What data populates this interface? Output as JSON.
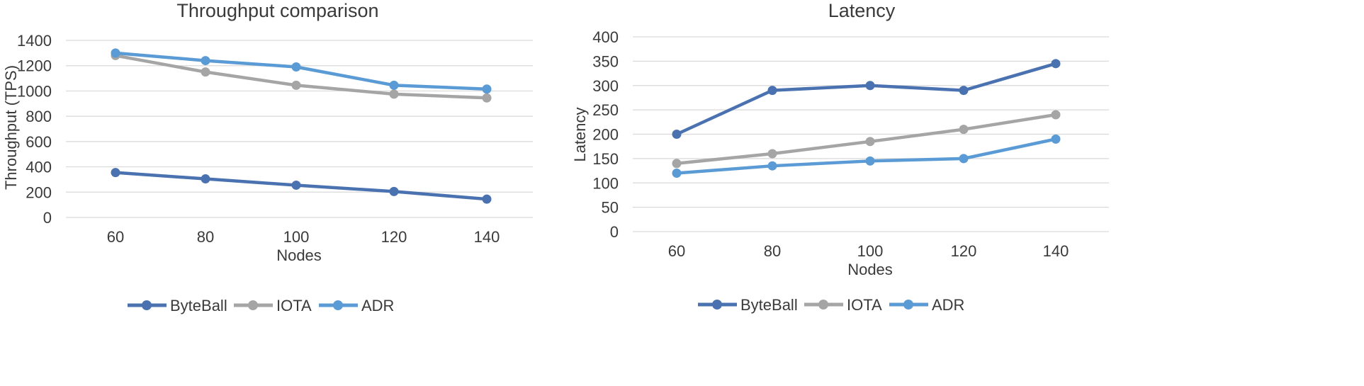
{
  "colors": {
    "ByteBall": "#4a72b0",
    "IOTA": "#a5a5a5",
    "ADR": "#5b9bd5",
    "grid": "#d9d9d9",
    "text": "#3a3a3a"
  },
  "chart_data": [
    {
      "type": "line",
      "title": "Throughput comparison",
      "xlabel": "Nodes",
      "ylabel": "Throughput (TPS)",
      "categories": [
        "60",
        "80",
        "100",
        "120",
        "140"
      ],
      "ylim": [
        0,
        1400
      ],
      "yticks": [
        "0",
        "200",
        "400",
        "600",
        "800",
        "1000",
        "1200",
        "1400"
      ],
      "grid": "horizontal",
      "legend": "bottom",
      "series": [
        {
          "name": "ByteBall",
          "values": [
            355,
            305,
            255,
            205,
            145
          ]
        },
        {
          "name": "IOTA",
          "values": [
            1280,
            1150,
            1045,
            975,
            945
          ]
        },
        {
          "name": "ADR",
          "values": [
            1300,
            1240,
            1190,
            1045,
            1015
          ]
        }
      ]
    },
    {
      "type": "line",
      "title": "Latency",
      "xlabel": "Nodes",
      "ylabel": "Latency",
      "categories": [
        "60",
        "80",
        "100",
        "120",
        "140"
      ],
      "ylim": [
        0,
        400
      ],
      "yticks": [
        "0",
        "50",
        "100",
        "150",
        "200",
        "250",
        "300",
        "350",
        "400"
      ],
      "grid": "horizontal",
      "legend": "bottom",
      "series": [
        {
          "name": "ByteBall",
          "values": [
            200,
            290,
            300,
            290,
            345
          ]
        },
        {
          "name": "IOTA",
          "values": [
            140,
            160,
            185,
            210,
            240
          ]
        },
        {
          "name": "ADR",
          "values": [
            120,
            135,
            145,
            150,
            190
          ]
        }
      ]
    }
  ]
}
